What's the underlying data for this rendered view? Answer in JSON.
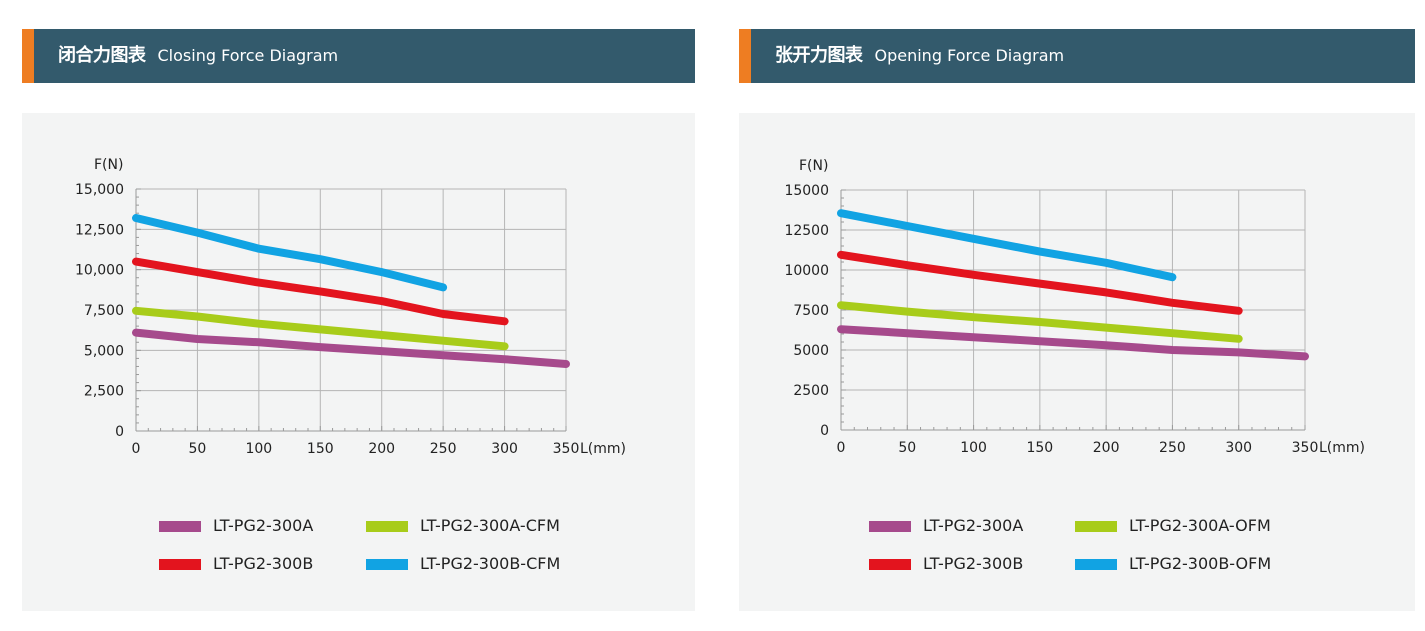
{
  "charts": [
    {
      "title_cn": "闭合力图表",
      "title_en": "Closing Force Diagram",
      "chart_data": {
        "type": "line",
        "ylabel": "F(N)",
        "xlabel": "L(mm)",
        "xlim": [
          0,
          350
        ],
        "ylim": [
          0,
          15000
        ],
        "x_ticks": [
          0,
          50,
          100,
          150,
          200,
          250,
          300,
          350
        ],
        "x_tick_labels": [
          "0",
          "50",
          "100",
          "150",
          "200",
          "250",
          "300",
          "350"
        ],
        "y_ticks": [
          0,
          2500,
          5000,
          7500,
          10000,
          12500,
          15000
        ],
        "y_tick_labels": [
          "0",
          "2,500",
          "5,000",
          "7,500",
          "10,000",
          "12,500",
          "15,000"
        ],
        "grid": true,
        "legend_position": "bottom",
        "series": [
          {
            "name": "LT-PG2-300A",
            "color": "#a64a8c",
            "x": [
              0,
              50,
              100,
              150,
              200,
              250,
              300,
              350
            ],
            "y": [
              6100,
              5700,
              5500,
              5200,
              4950,
              4700,
              4450,
              4150
            ]
          },
          {
            "name": "LT-PG2-300A-CFM",
            "color": "#a8cc1a",
            "x": [
              0,
              50,
              100,
              150,
              200,
              250,
              300
            ],
            "y": [
              7450,
              7100,
              6650,
              6300,
              5950,
              5600,
              5250
            ]
          },
          {
            "name": "LT-PG2-300B",
            "color": "#e3141e",
            "x": [
              0,
              50,
              100,
              150,
              200,
              250,
              300
            ],
            "y": [
              10500,
              9850,
              9200,
              8650,
              8050,
              7250,
              6800
            ]
          },
          {
            "name": "LT-PG2-300B-CFM",
            "color": "#11a3e3",
            "x": [
              0,
              50,
              100,
              150,
              200,
              250
            ],
            "y": [
              13200,
              12300,
              11300,
              10650,
              9850,
              8900
            ]
          }
        ]
      }
    },
    {
      "title_cn": "张开力图表",
      "title_en": "Opening Force Diagram",
      "chart_data": {
        "type": "line",
        "ylabel": "F(N)",
        "xlabel": "L(mm)",
        "xlim": [
          0,
          350
        ],
        "ylim": [
          0,
          15000
        ],
        "x_ticks": [
          0,
          50,
          100,
          150,
          200,
          250,
          300,
          350
        ],
        "x_tick_labels": [
          "0",
          "50",
          "100",
          "150",
          "200",
          "250",
          "300",
          "350"
        ],
        "y_ticks": [
          0,
          2500,
          5000,
          7500,
          10000,
          12500,
          15000
        ],
        "y_tick_labels": [
          "0",
          "2500",
          "5000",
          "7500",
          "10000",
          "12500",
          "15000"
        ],
        "grid": true,
        "legend_position": "bottom",
        "series": [
          {
            "name": "LT-PG2-300A",
            "color": "#a64a8c",
            "x": [
              0,
              50,
              100,
              150,
              200,
              250,
              300,
              350
            ],
            "y": [
              6300,
              6050,
              5800,
              5550,
              5300,
              5000,
              4850,
              4600
            ]
          },
          {
            "name": "LT-PG2-300A-OFM",
            "color": "#a8cc1a",
            "x": [
              0,
              50,
              100,
              150,
              200,
              250,
              300
            ],
            "y": [
              7800,
              7400,
              7050,
              6750,
              6400,
              6050,
              5700
            ]
          },
          {
            "name": "LT-PG2-300B",
            "color": "#e3141e",
            "x": [
              0,
              50,
              100,
              150,
              200,
              250,
              300
            ],
            "y": [
              10950,
              10300,
              9700,
              9150,
              8600,
              7950,
              7450
            ]
          },
          {
            "name": "LT-PG2-300B-OFM",
            "color": "#11a3e3",
            "x": [
              0,
              50,
              100,
              150,
              200,
              250
            ],
            "y": [
              13550,
              12750,
              11950,
              11150,
              10450,
              9550
            ]
          }
        ]
      }
    }
  ]
}
